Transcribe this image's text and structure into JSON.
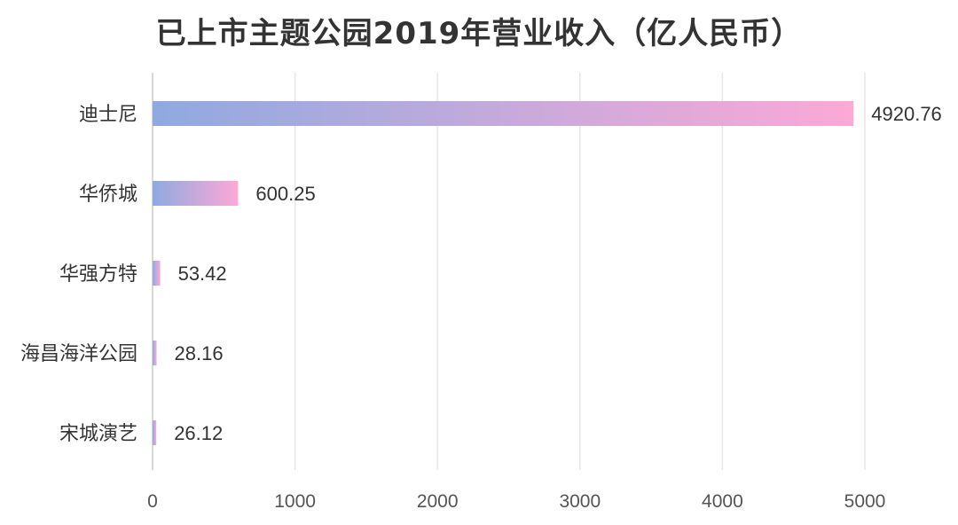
{
  "chart_data": {
    "type": "bar",
    "orientation": "horizontal",
    "title": "已上市主题公园2019年营业收入（亿人民币）",
    "categories": [
      "迪士尼",
      "华侨城",
      "华强方特",
      "海昌海洋公园",
      "宋城演艺"
    ],
    "values": [
      4920.76,
      600.25,
      53.42,
      28.16,
      26.12
    ],
    "value_labels": [
      "4920.76",
      "600.25",
      "53.42",
      "28.16",
      "26.12"
    ],
    "xlim": [
      0,
      5000
    ],
    "xticks": [
      "0",
      "1000",
      "2000",
      "3000",
      "4000",
      "5000"
    ],
    "grid": true,
    "colors": {
      "bar_start": "#8eaae0",
      "bar_end": "#fca9d6",
      "text": "#333333",
      "grid": "#e6e6e6"
    }
  }
}
